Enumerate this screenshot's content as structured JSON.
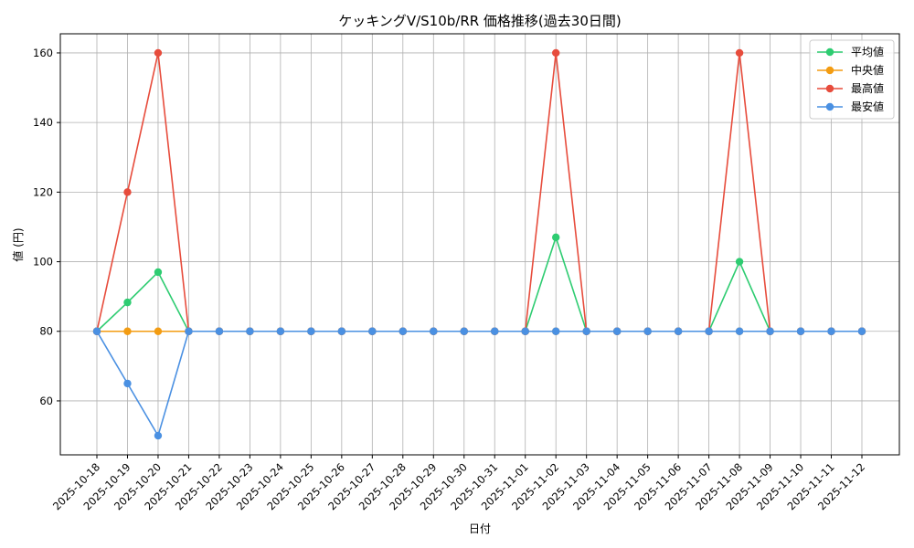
{
  "chart_data": {
    "type": "line",
    "title": "ケッキングV/S10b/RR 価格推移(過去30日間)",
    "xlabel": "日付",
    "ylabel": "値 (円)",
    "ylim": [
      44.5,
      165.5
    ],
    "yticks": [
      60,
      80,
      100,
      120,
      140,
      160
    ],
    "grid": true,
    "legend_position": "top-right",
    "categories": [
      "2025-10-18",
      "2025-10-19",
      "2025-10-20",
      "2025-10-21",
      "2025-10-22",
      "2025-10-23",
      "2025-10-24",
      "2025-10-25",
      "2025-10-26",
      "2025-10-27",
      "2025-10-28",
      "2025-10-29",
      "2025-10-30",
      "2025-10-31",
      "2025-11-01",
      "2025-11-02",
      "2025-11-03",
      "2025-11-04",
      "2025-11-05",
      "2025-11-06",
      "2025-11-07",
      "2025-11-08",
      "2025-11-09",
      "2025-11-10",
      "2025-11-11",
      "2025-11-12"
    ],
    "series": [
      {
        "name": "平均値",
        "color": "#2ecc71",
        "values": [
          80,
          88.3,
          97,
          80,
          80,
          80,
          80,
          80,
          80,
          80,
          80,
          80,
          80,
          80,
          80,
          107,
          80,
          80,
          80,
          80,
          80,
          100,
          80,
          80,
          80,
          80
        ]
      },
      {
        "name": "中央値",
        "color": "#f39c12",
        "values": [
          80,
          80,
          80,
          80,
          80,
          80,
          80,
          80,
          80,
          80,
          80,
          80,
          80,
          80,
          80,
          80,
          80,
          80,
          80,
          80,
          80,
          80,
          80,
          80,
          80,
          80
        ]
      },
      {
        "name": "最高値",
        "color": "#e74c3c",
        "values": [
          80,
          120,
          160,
          80,
          80,
          80,
          80,
          80,
          80,
          80,
          80,
          80,
          80,
          80,
          80,
          160,
          80,
          80,
          80,
          80,
          80,
          160,
          80,
          80,
          80,
          80
        ]
      },
      {
        "name": "最安値",
        "color": "#4a90e2",
        "values": [
          80,
          65,
          50,
          80,
          80,
          80,
          80,
          80,
          80,
          80,
          80,
          80,
          80,
          80,
          80,
          80,
          80,
          80,
          80,
          80,
          80,
          80,
          80,
          80,
          80,
          80
        ]
      }
    ]
  }
}
